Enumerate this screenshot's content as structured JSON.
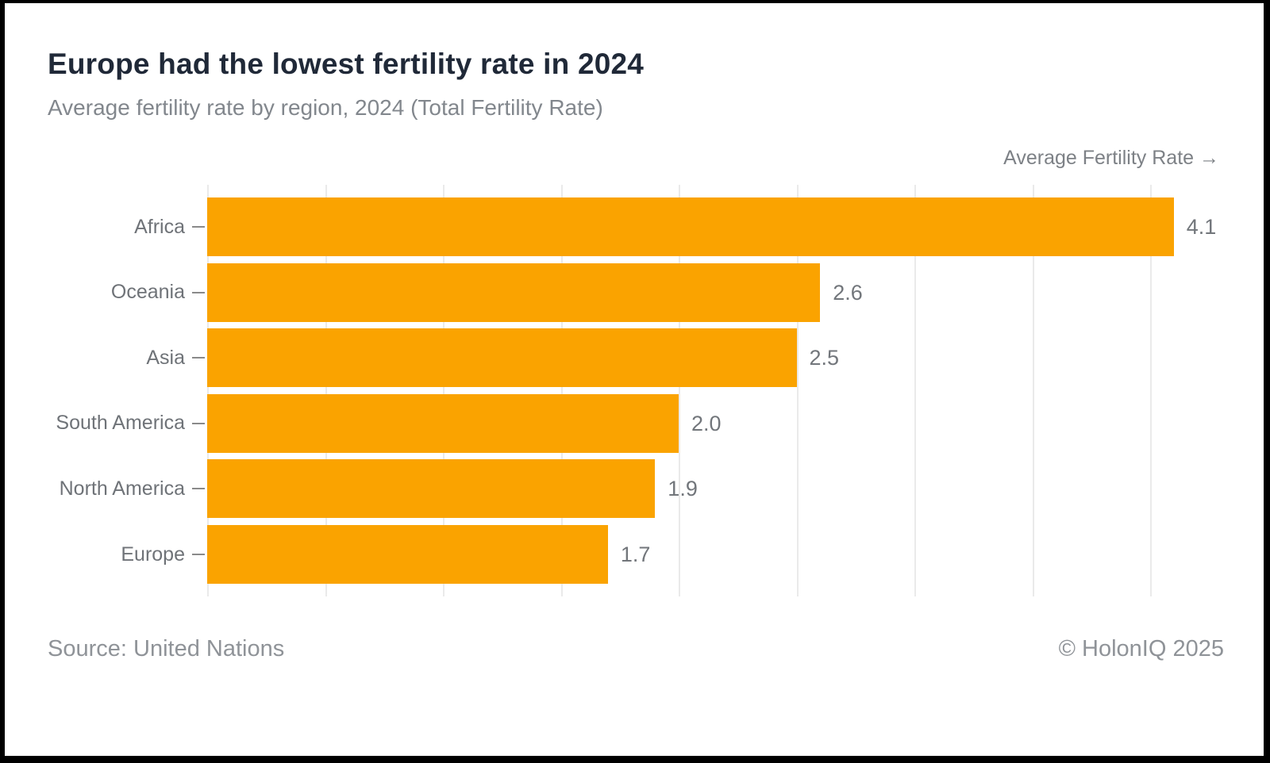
{
  "header": {
    "title": "Europe had the lowest fertility rate in 2024",
    "subtitle": "Average fertility rate by region, 2024 (Total Fertility Rate)"
  },
  "chart_data": {
    "type": "bar",
    "orientation": "horizontal",
    "title": "Europe had the lowest fertility rate in 2024",
    "subtitle": "Average fertility rate by region, 2024 (Total Fertility Rate)",
    "axis_label": "Average Fertility Rate →",
    "categories": [
      "Africa",
      "Oceania",
      "Asia",
      "South America",
      "North America",
      "Europe"
    ],
    "values": [
      4.1,
      2.6,
      2.5,
      2.0,
      1.9,
      1.7
    ],
    "value_labels": [
      "4.1",
      "2.6",
      "2.5",
      "2.0",
      "1.9",
      "1.7"
    ],
    "xlim": [
      0,
      4.25
    ],
    "gridlines": [
      0,
      0.5,
      1.0,
      1.5,
      2.0,
      2.5,
      3.0,
      3.5,
      4.0
    ],
    "grid": "vertical-light",
    "legend": "none",
    "bar_color": "#FAA300",
    "grid_color": "#EAEAEA"
  },
  "footer": {
    "source": "Source: United Nations",
    "copyright": "© HolonIQ 2025"
  },
  "colors": {
    "title": "#202938",
    "subtitle": "#82878D",
    "labels": "#6F7378",
    "frame": "#000000",
    "background": "#FFFFFF"
  }
}
